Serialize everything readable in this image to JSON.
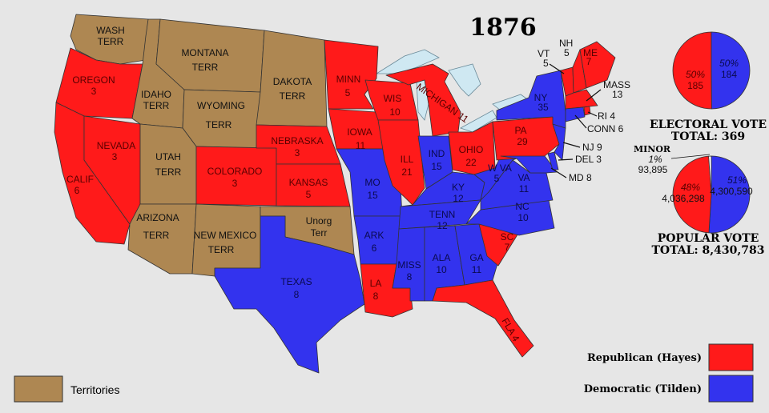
{
  "title": "1876",
  "colors": {
    "republican": "#ff1a1a",
    "democratic": "#3333ee",
    "territory": "#ae8752"
  },
  "states": {
    "wash": {
      "name": "WASH",
      "sub": "TERR",
      "party": "territory"
    },
    "oregon": {
      "name": "OREGON",
      "votes": "3",
      "party": "republican"
    },
    "calif": {
      "name": "CALIF",
      "votes": "6",
      "party": "republican"
    },
    "nevada": {
      "name": "NEVADA",
      "votes": "3",
      "party": "republican"
    },
    "idaho": {
      "name": "IDAHO",
      "sub": "TERR",
      "party": "territory"
    },
    "montana": {
      "name": "MONTANA",
      "sub": "TERR",
      "party": "territory"
    },
    "wyoming": {
      "name": "WYOMING",
      "sub": "TERR",
      "party": "territory"
    },
    "utah": {
      "name": "UTAH",
      "sub": "TERR",
      "party": "territory"
    },
    "arizona": {
      "name": "ARIZONA",
      "sub": "TERR",
      "party": "territory"
    },
    "newmexico": {
      "name": "NEW MEXICO",
      "sub": "TERR",
      "party": "territory"
    },
    "dakota": {
      "name": "DAKOTA",
      "sub": "TERR",
      "party": "territory"
    },
    "colorado": {
      "name": "COLORADO",
      "votes": "3",
      "party": "republican"
    },
    "nebraska": {
      "name": "NEBRASKA",
      "votes": "3",
      "party": "republican"
    },
    "kansas": {
      "name": "KANSAS",
      "votes": "5",
      "party": "republican"
    },
    "unorg": {
      "name": "Unorg",
      "sub": "Terr",
      "party": "territory"
    },
    "texas": {
      "name": "TEXAS",
      "votes": "8",
      "party": "democratic"
    },
    "minn": {
      "name": "MINN",
      "votes": "5",
      "party": "republican"
    },
    "iowa": {
      "name": "IOWA",
      "votes": "11",
      "party": "republican"
    },
    "mo": {
      "name": "MO",
      "votes": "15",
      "party": "democratic"
    },
    "ark": {
      "name": "ARK",
      "votes": "6",
      "party": "democratic"
    },
    "la": {
      "name": "LA",
      "votes": "8",
      "party": "republican"
    },
    "wis": {
      "name": "WIS",
      "votes": "10",
      "party": "republican"
    },
    "ill": {
      "name": "ILL",
      "votes": "21",
      "party": "republican"
    },
    "michigan": {
      "name": "MICHIGAN 11",
      "party": "republican"
    },
    "ind": {
      "name": "IND",
      "votes": "15",
      "party": "democratic"
    },
    "ohio": {
      "name": "OHIO",
      "votes": "22",
      "party": "republican"
    },
    "ky": {
      "name": "KY",
      "votes": "12",
      "party": "democratic"
    },
    "tenn": {
      "name": "TENN",
      "votes": "12",
      "party": "democratic"
    },
    "miss": {
      "name": "MISS",
      "votes": "8",
      "party": "democratic"
    },
    "ala": {
      "name": "ALA",
      "votes": "10",
      "party": "democratic"
    },
    "ga": {
      "name": "GA",
      "votes": "11",
      "party": "democratic"
    },
    "fla": {
      "name": "FLA 4",
      "party": "republican"
    },
    "sc": {
      "name": "SC",
      "votes": "7",
      "party": "republican"
    },
    "nc": {
      "name": "NC",
      "votes": "10",
      "party": "democratic"
    },
    "va": {
      "name": "VA",
      "votes": "11",
      "party": "democratic"
    },
    "wva": {
      "name": "W VA",
      "votes": "5",
      "party": "democratic"
    },
    "pa": {
      "name": "PA",
      "votes": "29",
      "party": "republican"
    },
    "ny": {
      "name": "NY",
      "votes": "35",
      "party": "democratic"
    },
    "vt": {
      "name": "VT",
      "votes": "5",
      "party": "republican"
    },
    "nh": {
      "name": "NH",
      "votes": "5",
      "party": "republican"
    },
    "me": {
      "name": "ME",
      "votes": "7",
      "party": "republican"
    },
    "mass": {
      "name": "MASS",
      "votes": "13",
      "party": "republican"
    },
    "ri": {
      "name": "RI 4",
      "party": "republican"
    },
    "conn": {
      "name": "CONN 6",
      "party": "democratic"
    },
    "nj": {
      "name": "NJ 9",
      "party": "democratic"
    },
    "del": {
      "name": "DEL 3",
      "party": "democratic"
    },
    "md": {
      "name": "MD 8",
      "party": "democratic"
    }
  },
  "electoral": {
    "heading": "ELECTORAL  VOTE",
    "total": "TOTAL:  369",
    "republican": {
      "pct": "50%",
      "votes": "185",
      "value": 185
    },
    "democratic": {
      "pct": "50%",
      "votes": "184",
      "value": 184
    }
  },
  "popular": {
    "heading": "POPULAR  VOTE",
    "total": "TOTAL:  8,430,783",
    "republican": {
      "pct": "48%",
      "votes": "4,036,298",
      "value": 4036298
    },
    "democratic": {
      "pct": "51%",
      "votes": "4,300,590",
      "value": 4300590
    },
    "minor": {
      "label": "MINOR",
      "pct": "1%",
      "votes": "93,895",
      "value": 93895
    }
  },
  "legend": {
    "republican": "Republican (Hayes)",
    "democratic": "Democratic (Tilden)",
    "territories": "Territories"
  }
}
